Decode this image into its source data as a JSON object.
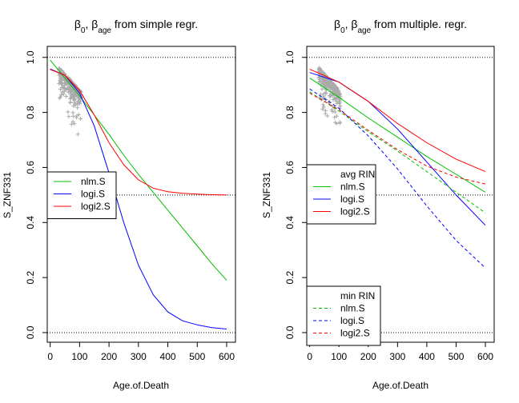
{
  "chart_data": [
    {
      "type": "line",
      "title": "β0, βage from simple regr.",
      "title_parts": {
        "b0": "β",
        "b0_sub": "0",
        "sep": ", ",
        "bage": "β",
        "bage_sub": "age",
        "rest": " from simple regr."
      },
      "xlabel": "Age.of.Death",
      "ylabel": "S_ZNF331",
      "xlim": [
        -10,
        630
      ],
      "ylim": [
        -0.035,
        1.04
      ],
      "xticks": [
        0,
        100,
        200,
        300,
        400,
        500,
        600
      ],
      "yticks": [
        0.0,
        0.2,
        0.4,
        0.6,
        0.8,
        1.0
      ],
      "ytick_labels": [
        "0.0",
        "0.2",
        "0.4",
        "0.6",
        "0.8",
        "1.0"
      ],
      "hlines": [
        1.0,
        0.5,
        0.0
      ],
      "legend_position": "middle-left",
      "legend_groups": [
        {
          "title": "",
          "entries": [
            {
              "label": "nlm.S",
              "color": "#00c000",
              "dash": "solid"
            },
            {
              "label": "logi.S",
              "color": "#0000ff",
              "dash": "solid"
            },
            {
              "label": "logi2.S",
              "color": "#ff0000",
              "dash": "solid"
            }
          ]
        }
      ],
      "series": [
        {
          "name": "nlm.S",
          "color": "#00c000",
          "dash": "solid",
          "x": [
            0,
            50,
            100,
            150,
            200,
            250,
            300,
            350,
            400,
            450,
            500,
            550,
            600
          ],
          "y": [
            0.99,
            0.925,
            0.86,
            0.79,
            0.72,
            0.645,
            0.575,
            0.51,
            0.445,
            0.38,
            0.315,
            0.25,
            0.19
          ]
        },
        {
          "name": "logi.S",
          "color": "#0000ff",
          "dash": "solid",
          "x": [
            0,
            50,
            100,
            150,
            200,
            250,
            300,
            350,
            400,
            450,
            500,
            550,
            600
          ],
          "y": [
            0.958,
            0.935,
            0.87,
            0.75,
            0.58,
            0.4,
            0.245,
            0.138,
            0.075,
            0.043,
            0.028,
            0.018,
            0.013
          ]
        },
        {
          "name": "logi2.S",
          "color": "#ff0000",
          "dash": "solid",
          "x": [
            0,
            50,
            100,
            150,
            200,
            250,
            300,
            350,
            400,
            450,
            500,
            550,
            600
          ],
          "y": [
            0.956,
            0.935,
            0.88,
            0.79,
            0.69,
            0.61,
            0.555,
            0.525,
            0.512,
            0.506,
            0.503,
            0.501,
            0.5
          ]
        }
      ],
      "scatter": {
        "name": "",
        "color": "#aaaaaa",
        "marker": "+",
        "x_range": [
          30,
          105
        ],
        "y_range": [
          0.69,
          0.98
        ]
      }
    },
    {
      "type": "line",
      "title": "β0, βage from multiple. regr.",
      "title_parts": {
        "b0": "β",
        "b0_sub": "0",
        "sep": ", ",
        "bage": "β",
        "bage_sub": "age",
        "rest": " from multiple. regr."
      },
      "xlabel": "Age.of.Death",
      "ylabel": "S_ZNF331",
      "xlim": [
        -10,
        630
      ],
      "ylim": [
        -0.035,
        1.04
      ],
      "xticks": [
        0,
        100,
        200,
        300,
        400,
        500,
        600
      ],
      "yticks": [
        0.0,
        0.2,
        0.4,
        0.6,
        0.8,
        1.0
      ],
      "ytick_labels": [
        "0.0",
        "0.2",
        "0.4",
        "0.6",
        "0.8",
        "1.0"
      ],
      "hlines": [
        1.0,
        0.5,
        0.0
      ],
      "legend_position": "middle-left and bottom-left",
      "legend_groups": [
        {
          "title": "avg RIN",
          "entries": [
            {
              "label": "nlm.S",
              "color": "#00c000",
              "dash": "solid"
            },
            {
              "label": "logi.S",
              "color": "#0000ff",
              "dash": "solid"
            },
            {
              "label": "logi2.S",
              "color": "#ff0000",
              "dash": "solid"
            }
          ]
        },
        {
          "title": "min RIN",
          "entries": [
            {
              "label": "nlm.S",
              "color": "#00c000",
              "dash": "dashed"
            },
            {
              "label": "logi.S",
              "color": "#0000ff",
              "dash": "dashed"
            },
            {
              "label": "logi2.S",
              "color": "#ff0000",
              "dash": "dashed"
            }
          ]
        }
      ],
      "series": [
        {
          "name": "nlm.S",
          "color": "#00c000",
          "dash": "solid",
          "x": [
            0,
            100,
            200,
            300,
            400,
            500,
            600
          ],
          "y": [
            0.925,
            0.855,
            0.78,
            0.71,
            0.64,
            0.575,
            0.51
          ]
        },
        {
          "name": "logi.S",
          "color": "#0000ff",
          "dash": "solid",
          "x": [
            0,
            100,
            200,
            300,
            400,
            500,
            600
          ],
          "y": [
            0.945,
            0.91,
            0.84,
            0.74,
            0.62,
            0.5,
            0.39
          ]
        },
        {
          "name": "logi2.S",
          "color": "#ff0000",
          "dash": "solid",
          "x": [
            0,
            100,
            200,
            300,
            400,
            500,
            600
          ],
          "y": [
            0.957,
            0.91,
            0.84,
            0.76,
            0.69,
            0.63,
            0.585
          ]
        },
        {
          "name": "nlm.S",
          "color": "#00c000",
          "dash": "dashed",
          "x": [
            0,
            100,
            200,
            300,
            400,
            500,
            600
          ],
          "y": [
            0.875,
            0.805,
            0.73,
            0.66,
            0.585,
            0.51,
            0.435
          ]
        },
        {
          "name": "logi.S",
          "color": "#0000ff",
          "dash": "dashed",
          "x": [
            0,
            100,
            200,
            300,
            400,
            500,
            600
          ],
          "y": [
            0.885,
            0.815,
            0.715,
            0.595,
            0.46,
            0.335,
            0.235
          ]
        },
        {
          "name": "logi2.S",
          "color": "#ff0000",
          "dash": "dashed",
          "x": [
            0,
            100,
            200,
            300,
            400,
            500,
            600
          ],
          "y": [
            0.87,
            0.81,
            0.735,
            0.665,
            0.605,
            0.565,
            0.54
          ]
        }
      ],
      "scatter": {
        "name": "",
        "color": "#aaaaaa",
        "marker": "+",
        "x_range": [
          30,
          105
        ],
        "y_range": [
          0.69,
          0.98
        ]
      }
    }
  ]
}
